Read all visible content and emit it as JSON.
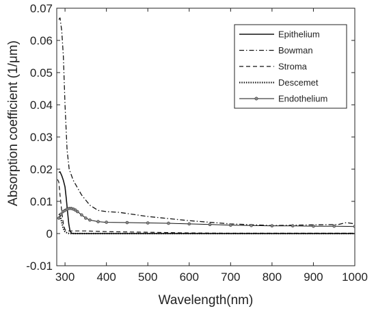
{
  "chart_data": {
    "type": "line",
    "xlabel": "Wavelength(nm)",
    "ylabel": "Absorption coefficient (1/μm)",
    "xlim": [
      280,
      1000
    ],
    "ylim": [
      -0.01,
      0.07
    ],
    "xticks": [
      300,
      400,
      500,
      600,
      700,
      800,
      900,
      1000
    ],
    "yticks": [
      -0.01,
      0,
      0.01,
      0.02,
      0.03,
      0.04,
      0.05,
      0.06,
      0.07
    ],
    "xtick_labels": [
      "300",
      "400",
      "500",
      "600",
      "700",
      "800",
      "900",
      "1000"
    ],
    "ytick_labels": [
      "-0.01",
      "0",
      "0.01",
      "0.02",
      "0.03",
      "0.04",
      "0.05",
      "0.06",
      "0.07"
    ],
    "grid": false,
    "legend_position": "top-right",
    "series": [
      {
        "name": "Epithelium",
        "style": "solid",
        "x": [
          285,
          288,
          292,
          296,
          300,
          303,
          306,
          309,
          312,
          316,
          320,
          340,
          400,
          500,
          600,
          700,
          800,
          900,
          1000
        ],
        "y": [
          0.019,
          0.0192,
          0.018,
          0.0165,
          0.0145,
          0.011,
          0.007,
          0.003,
          0.0008,
          0.0001,
          0.0,
          0.0,
          0.0,
          0.0,
          0.0,
          0.0,
          0.0,
          0.0,
          0.0
        ]
      },
      {
        "name": "Bowman",
        "style": "dashdot",
        "x": [
          285,
          288,
          292,
          296,
          300,
          305,
          310,
          320,
          340,
          360,
          380,
          400,
          430,
          500,
          600,
          700,
          800,
          900,
          960,
          980,
          1000
        ],
        "y": [
          0.0665,
          0.067,
          0.063,
          0.055,
          0.04,
          0.026,
          0.02,
          0.0165,
          0.012,
          0.0088,
          0.0072,
          0.0068,
          0.0066,
          0.0053,
          0.004,
          0.003,
          0.0025,
          0.0027,
          0.0028,
          0.0034,
          0.003
        ]
      },
      {
        "name": "Stroma",
        "style": "dashed",
        "x": [
          282,
          285,
          288,
          292,
          296,
          300,
          305,
          310,
          320,
          350,
          400,
          500,
          600,
          700,
          800,
          900,
          1000
        ],
        "y": [
          0.0168,
          0.016,
          0.012,
          0.007,
          0.003,
          0.0012,
          0.0008,
          0.0008,
          0.0008,
          0.0008,
          0.0006,
          0.0004,
          0.0002,
          0.0001,
          0.0001,
          0.0001,
          0.0001
        ]
      },
      {
        "name": "Descemet",
        "style": "dotted",
        "x": [
          285,
          288,
          292,
          296,
          300,
          305,
          310,
          315,
          320,
          400,
          500,
          600,
          700,
          800,
          900,
          1000
        ],
        "y": [
          0.006,
          0.0058,
          0.0035,
          0.0015,
          0.0006,
          0.0002,
          0.0,
          0.0,
          0.0,
          0.0,
          0.0,
          0.0,
          0.0,
          0.0,
          0.0,
          0.0
        ]
      },
      {
        "name": "Endothelium",
        "style": "marker",
        "x": [
          285,
          290,
          295,
          300,
          305,
          310,
          315,
          320,
          325,
          330,
          340,
          350,
          360,
          380,
          400,
          450,
          500,
          550,
          600,
          650,
          700,
          750,
          800,
          850,
          900,
          950,
          1000
        ],
        "y": [
          0.0048,
          0.006,
          0.0068,
          0.0072,
          0.0076,
          0.0078,
          0.0078,
          0.0076,
          0.0073,
          0.0068,
          0.0058,
          0.0048,
          0.0042,
          0.0037,
          0.0035,
          0.0034,
          0.0033,
          0.0032,
          0.003,
          0.0028,
          0.0026,
          0.0025,
          0.0024,
          0.0024,
          0.0023,
          0.0023,
          0.0022
        ]
      }
    ]
  }
}
